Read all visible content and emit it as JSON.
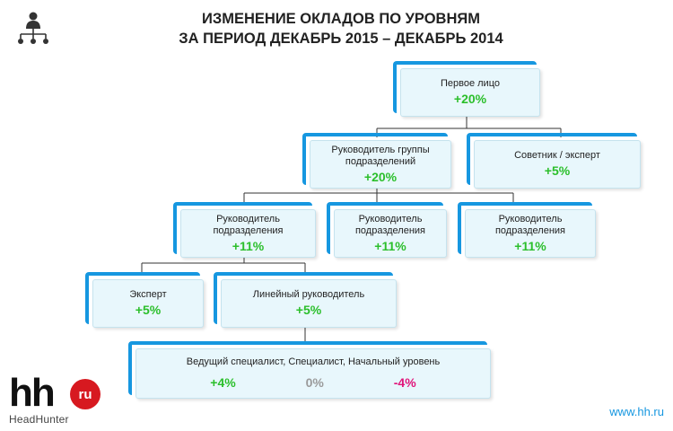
{
  "header": {
    "title_line1": "ИЗМЕНЕНИЕ ОКЛАДОВ ПО УРОВНЯМ",
    "title_line2": "ЗА ПЕРИОД  ДЕКАБРЬ 2015 – ДЕКАБРЬ 2014",
    "icon": "org-structure-icon"
  },
  "nodes": {
    "first_person": {
      "label": "Первое лицо",
      "change": "+20%"
    },
    "group_head": {
      "label": "Руководитель группы подразделений",
      "change": "+20%"
    },
    "advisor": {
      "label": "Советник / эксперт",
      "change": "+5%"
    },
    "dept_head_1": {
      "label": "Руководитель подразделения",
      "change": "+11%"
    },
    "dept_head_2": {
      "label": "Руководитель подразделения",
      "change": "+11%"
    },
    "dept_head_3": {
      "label": "Руководитель подразделения",
      "change": "+11%"
    },
    "expert": {
      "label": "Эксперт",
      "change": "+5%"
    },
    "line_manager": {
      "label": "Линейный руководитель",
      "change": "+5%"
    },
    "specialists": {
      "label": "Ведущий специалист, Специалист, Начальный уровень",
      "changes": [
        "+4%",
        "0%",
        "-4%"
      ]
    }
  },
  "colors": {
    "accent": "#1697e0",
    "positive": "#2bbf2b",
    "neutral": "#9a9a9a",
    "negative": "#e0157a"
  },
  "footer": {
    "logo_letters": "hh",
    "logo_badge": "ru",
    "logo_sub": "HeadHunter",
    "website": "www.hh.ru"
  }
}
